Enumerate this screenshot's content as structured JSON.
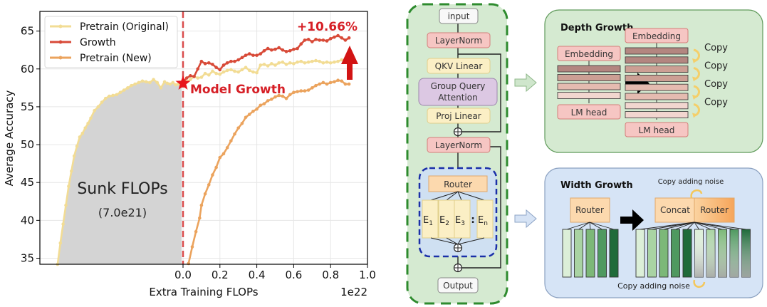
{
  "chart_data": {
    "type": "line",
    "title": "",
    "xlabel": "Extra Training FLOPs",
    "ylabel": "Average Accuracy",
    "x_offset_label": "1e22",
    "xlim": [
      -0.776,
      1.0
    ],
    "ylim": [
      34.2,
      67.6
    ],
    "grid": true,
    "legend_position": "top-left",
    "x_ticks": [
      0.0,
      0.2,
      0.4,
      0.6,
      0.8,
      1.0
    ],
    "x_tick_labels": [
      "0.0",
      "0.2",
      "0.4",
      "0.6",
      "0.8",
      "1.0"
    ],
    "y_ticks": [
      35,
      40,
      45,
      50,
      55,
      60,
      65
    ],
    "y_tick_labels": [
      "35",
      "40",
      "45",
      "50",
      "55",
      "60",
      "65"
    ],
    "series": [
      {
        "name": "Pretrain (Original)",
        "color": "#f2dc94",
        "x": [
          -0.68,
          -0.665,
          -0.65,
          -0.635,
          -0.62,
          -0.605,
          -0.59,
          -0.575,
          -0.56,
          -0.545,
          -0.53,
          -0.515,
          -0.5,
          -0.48,
          -0.46,
          -0.44,
          -0.42,
          -0.4,
          -0.38,
          -0.36,
          -0.34,
          -0.32,
          -0.3,
          -0.28,
          -0.26,
          -0.24,
          -0.22,
          -0.2,
          -0.18,
          -0.16,
          -0.14,
          -0.12,
          -0.1,
          -0.085,
          -0.07,
          -0.055,
          -0.04,
          -0.025,
          -0.01,
          0.0,
          0.02,
          0.04,
          0.06,
          0.08,
          0.1,
          0.12,
          0.14,
          0.16,
          0.18,
          0.2,
          0.22,
          0.24,
          0.26,
          0.28,
          0.3,
          0.32,
          0.34,
          0.36,
          0.38,
          0.4,
          0.42,
          0.44,
          0.46,
          0.48,
          0.5,
          0.52,
          0.54,
          0.56,
          0.58,
          0.6,
          0.62,
          0.64,
          0.66,
          0.68,
          0.7,
          0.72,
          0.74,
          0.76,
          0.78,
          0.8,
          0.82,
          0.84,
          0.86,
          0.88,
          0.9
        ],
        "y": [
          34.2,
          37.0,
          39.5,
          42.0,
          44.5,
          46.5,
          48.5,
          49.8,
          51.0,
          51.5,
          52.2,
          52.8,
          53.5,
          54.5,
          55.0,
          55.6,
          56.1,
          56.4,
          56.5,
          56.6,
          56.9,
          57.2,
          57.5,
          57.8,
          58.0,
          58.2,
          58.4,
          58.3,
          58.2,
          58.6,
          58.2,
          57.5,
          58.3,
          58.1,
          58.0,
          58.2,
          57.9,
          58.0,
          58.1,
          58.1,
          58.3,
          58.6,
          59.0,
          58.8,
          58.9,
          59.4,
          59.2,
          59.7,
          59.4,
          59.3,
          59.6,
          59.8,
          59.9,
          59.7,
          59.6,
          59.9,
          60.2,
          59.8,
          59.6,
          59.5,
          60.5,
          60.6,
          60.4,
          60.7,
          60.5,
          60.8,
          60.9,
          60.6,
          60.8,
          60.7,
          60.9,
          61.0,
          60.8,
          60.9,
          61.0,
          61.1,
          61.0,
          60.8,
          60.9,
          60.8,
          60.9,
          61.0,
          61.2,
          61.1,
          61.3
        ]
      },
      {
        "name": "Growth",
        "color": "#d84a38",
        "x": [
          0.0,
          0.02,
          0.04,
          0.06,
          0.08,
          0.1,
          0.12,
          0.14,
          0.16,
          0.18,
          0.2,
          0.22,
          0.24,
          0.26,
          0.28,
          0.3,
          0.32,
          0.34,
          0.36,
          0.38,
          0.4,
          0.42,
          0.44,
          0.46,
          0.48,
          0.5,
          0.52,
          0.54,
          0.56,
          0.58,
          0.6,
          0.62,
          0.64,
          0.66,
          0.68,
          0.7,
          0.72,
          0.74,
          0.76,
          0.78,
          0.8,
          0.82,
          0.84,
          0.86,
          0.88,
          0.9
        ],
        "y": [
          58.3,
          58.8,
          59.1,
          59.0,
          60.0,
          61.0,
          60.7,
          60.8,
          60.6,
          60.2,
          59.9,
          60.5,
          60.8,
          61.0,
          61.0,
          61.2,
          61.5,
          61.8,
          62.0,
          61.8,
          61.8,
          62.0,
          62.4,
          62.7,
          62.5,
          62.6,
          62.8,
          62.5,
          62.3,
          62.4,
          62.6,
          62.7,
          63.3,
          63.8,
          63.9,
          63.6,
          63.9,
          63.8,
          63.8,
          63.7,
          64.0,
          64.2,
          64.4,
          64.1,
          63.8,
          64.1
        ]
      },
      {
        "name": "Pretrain (New)",
        "color": "#eba35d",
        "x": [
          0.03,
          0.05,
          0.07,
          0.09,
          0.1,
          0.12,
          0.14,
          0.16,
          0.18,
          0.2,
          0.22,
          0.24,
          0.26,
          0.28,
          0.3,
          0.32,
          0.34,
          0.36,
          0.38,
          0.4,
          0.42,
          0.44,
          0.46,
          0.48,
          0.5,
          0.52,
          0.54,
          0.56,
          0.58,
          0.6,
          0.62,
          0.64,
          0.66,
          0.68,
          0.7,
          0.72,
          0.74,
          0.76,
          0.78,
          0.8,
          0.82,
          0.84,
          0.86,
          0.88,
          0.9
        ],
        "y": [
          34.3,
          36.5,
          38.5,
          40.3,
          42.0,
          43.5,
          44.7,
          46.0,
          47.0,
          48.3,
          48.8,
          49.6,
          50.5,
          51.4,
          52.2,
          52.8,
          53.6,
          54.0,
          54.4,
          54.7,
          55.2,
          55.4,
          55.8,
          56.0,
          56.3,
          56.5,
          56.4,
          56.1,
          56.6,
          56.9,
          57.0,
          57.1,
          57.1,
          57.2,
          57.5,
          57.8,
          58.0,
          58.2,
          58.0,
          58.2,
          58.3,
          58.5,
          58.4,
          58.0,
          58.0
        ]
      }
    ],
    "annotations": {
      "sunk_label": "Sunk FLOPs",
      "sunk_value": "(7.0e21)",
      "growth_marker_label": "Model Growth",
      "gain_label": "+10.66%"
    }
  },
  "diagram": {
    "block": {
      "input": "input",
      "layernorm1": "LayerNorm",
      "qkv": "QKV Linear",
      "gqa_line1": "Group Query",
      "gqa_line2": "Attention",
      "proj": "Proj Linear",
      "layernorm2": "LayerNorm",
      "router": "Router",
      "experts": [
        {
          "base": "E",
          "sub": "1"
        },
        {
          "base": "E",
          "sub": "2"
        },
        {
          "base": "E",
          "sub": "3"
        },
        {
          "base": "E",
          "sub": "n"
        }
      ],
      "expert_ellipsis": ":",
      "output": "Output"
    },
    "depth": {
      "title": "Depth Growth",
      "embedding": "Embedding",
      "lm_head": "LM head",
      "copy_labels": [
        "Copy",
        "Copy",
        "Copy",
        "Copy"
      ],
      "left_layer_colors": [
        "#b38680",
        "#cc9f94",
        "#e5bbb0",
        "#f2d6cf"
      ],
      "right_layer_colors": [
        "#b38680",
        "#b38680",
        "#cc9f94",
        "#cc9f94",
        "#e5bbb0",
        "#e5bbb0",
        "#f2d6cf",
        "#f2d6cf"
      ]
    },
    "width": {
      "title": "Width Growth",
      "router": "Router",
      "concat": "Concat",
      "router_new": "Router",
      "copy_noise_top": "Copy adding noise",
      "copy_noise_bottom": "Copy adding noise",
      "expert_colors": [
        "#dcefd8",
        "#a9d3a3",
        "#7cb878",
        "#4f9960",
        "#1f6b3a"
      ]
    }
  }
}
